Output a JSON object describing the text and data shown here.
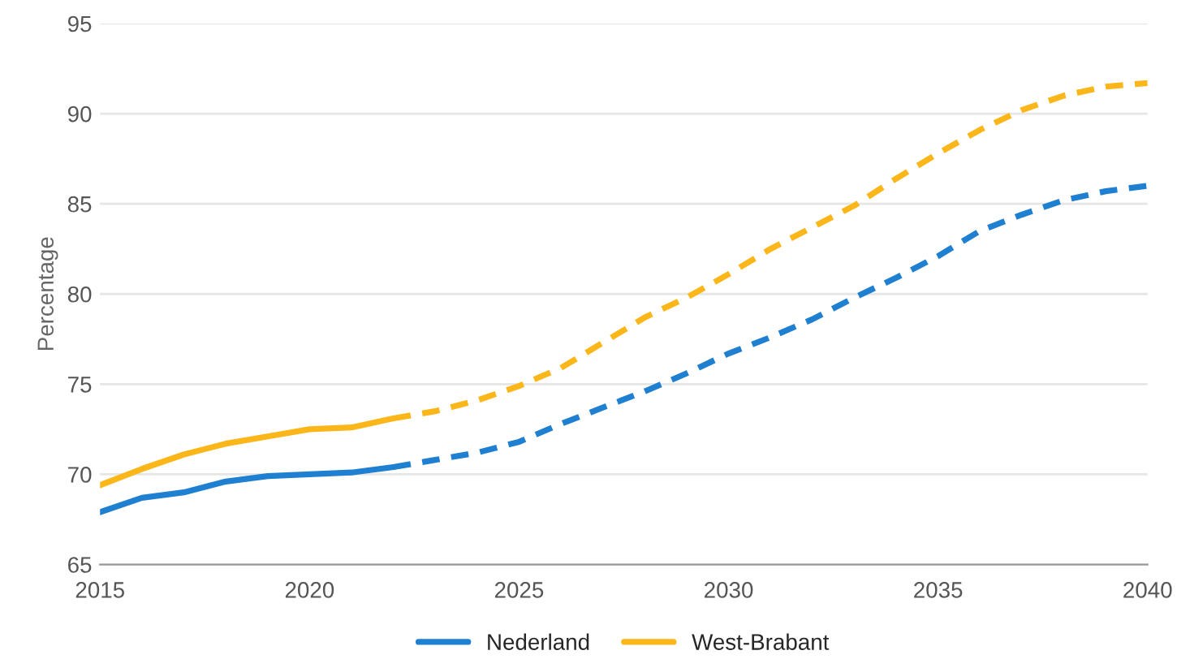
{
  "chart_data": {
    "type": "line",
    "ylabel": "Percentage",
    "xlim": [
      2015,
      2040
    ],
    "xticks": [
      2015,
      2020,
      2025,
      2030,
      2035,
      2040
    ],
    "ylim": [
      65,
      95
    ],
    "yticks": [
      65,
      70,
      75,
      80,
      85,
      90,
      95
    ],
    "grid": "y",
    "legend": "bottom",
    "marker": "none",
    "series": [
      {
        "name": "Nederland",
        "color": "#1f7fd0",
        "line_style": "solid",
        "x": [
          2015,
          2016,
          2017,
          2018,
          2019,
          2020,
          2021,
          2022
        ],
        "values": [
          67.9,
          68.7,
          69.0,
          69.6,
          69.9,
          70.0,
          70.1,
          70.4
        ]
      },
      {
        "name": "West-Brabant",
        "color": "#fbb61a",
        "line_style": "solid",
        "x": [
          2015,
          2016,
          2017,
          2018,
          2019,
          2020,
          2021,
          2022
        ],
        "values": [
          69.4,
          70.3,
          71.1,
          71.7,
          72.1,
          72.5,
          72.6,
          73.1
        ]
      },
      {
        "color": "#1f7fd0",
        "line_style": "dashed",
        "x": [
          2022,
          2023,
          2024,
          2025,
          2026,
          2027,
          2028,
          2029,
          2030,
          2031,
          2032,
          2033,
          2034,
          2035,
          2036,
          2037,
          2038,
          2039,
          2040
        ],
        "values": [
          70.4,
          70.8,
          71.2,
          71.8,
          72.8,
          73.7,
          74.6,
          75.6,
          76.7,
          77.6,
          78.6,
          79.8,
          80.9,
          82.1,
          83.5,
          84.4,
          85.2,
          85.7,
          86.0
        ]
      },
      {
        "color": "#fbb61a",
        "line_style": "dashed",
        "x": [
          2022,
          2023,
          2024,
          2025,
          2026,
          2027,
          2028,
          2029,
          2030,
          2031,
          2032,
          2033,
          2034,
          2035,
          2036,
          2037,
          2038,
          2039,
          2040
        ],
        "values": [
          73.1,
          73.5,
          74.1,
          74.9,
          75.9,
          77.3,
          78.7,
          79.8,
          81.1,
          82.5,
          83.7,
          84.9,
          86.4,
          87.8,
          89.1,
          90.2,
          91.0,
          91.5,
          91.7
        ]
      }
    ]
  }
}
